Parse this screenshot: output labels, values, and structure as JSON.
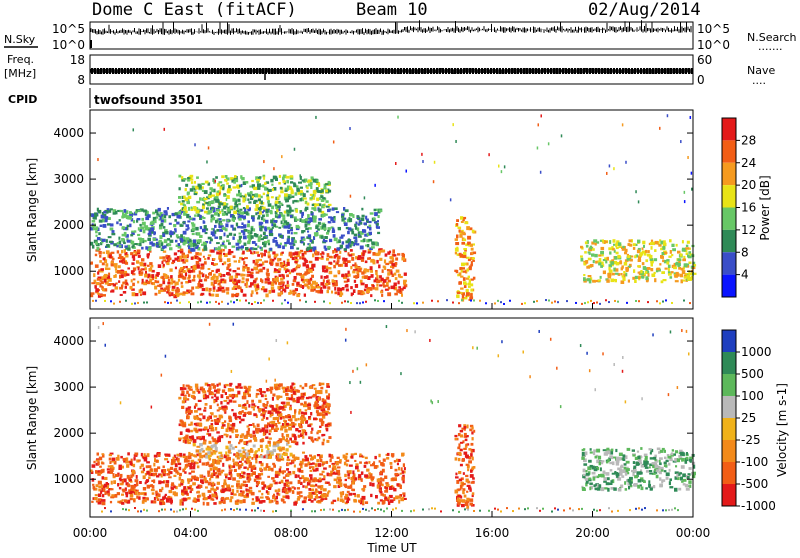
{
  "header": {
    "station": "Dome C East (fitACF)",
    "beam": "Beam 10",
    "date": "02/Aug/2014"
  },
  "top_panels": {
    "nsky_label": "N.Sky",
    "nsearch_label": "N.Search",
    "nsearch_dots": ".......",
    "noise_ticks_left": [
      "10^5",
      "10^0"
    ],
    "noise_ticks_right": [
      "10^5",
      "10^0"
    ],
    "freq_label_1": "Freq.",
    "freq_label_2": "[MHz]",
    "freq_ticks": [
      "18",
      "8"
    ],
    "nave_label": "Nave",
    "nave_dots": "....",
    "nave_ticks": [
      "60",
      "0"
    ],
    "cpid_label": "CPID",
    "cpid_value": "twofsound 3501"
  },
  "axes": {
    "ylabel": "Slant Range [km]",
    "yticks": [
      "1000",
      "2000",
      "3000",
      "4000"
    ],
    "xlabel": "Time UT",
    "xticks": [
      "00:00",
      "04:00",
      "08:00",
      "12:00",
      "16:00",
      "20:00",
      "00:00"
    ]
  },
  "power_scale": {
    "label": "Power [dB]",
    "ticks": [
      "4",
      "8",
      "12",
      "16",
      "20",
      "24",
      "28"
    ],
    "colors": [
      "#0a14ff",
      "#3a4ec8",
      "#2f8a57",
      "#67c766",
      "#e8e317",
      "#f59a1f",
      "#f25e16",
      "#e41a1a"
    ]
  },
  "velocity_scale": {
    "label": "Velocity [m s-1]",
    "ticks": [
      "1000",
      "500",
      "100",
      "25",
      "-25",
      "-100",
      "-500",
      "-1000"
    ],
    "colors": [
      "#1f3fbf",
      "#2f8a57",
      "#5db85b",
      "#b9b9b9",
      "#f0b21a",
      "#f38a1a",
      "#f25e16",
      "#e41a1a"
    ]
  },
  "chart_data": {
    "type": "heatmap",
    "x_range_hours": [
      0,
      24
    ],
    "y_range_km": [
      180,
      4500
    ],
    "panels": [
      {
        "quantity": "Power",
        "unit": "dB",
        "scatter_regions": [
          {
            "t_start": "00:00",
            "t_end": "12:30",
            "range_km": [
              500,
              1500
            ],
            "typical_dB": 24
          },
          {
            "t_start": "00:00",
            "t_end": "11:30",
            "range_km": [
              1500,
              2400
            ],
            "typical_dB": 10
          },
          {
            "t_start": "03:30",
            "t_end": "09:30",
            "range_km": [
              2300,
              3100
            ],
            "typical_dB": 12
          },
          {
            "t_start": "14:30",
            "t_end": "15:15",
            "range_km": [
              400,
              2200
            ],
            "typical_dB": 20
          },
          {
            "t_start": "19:30",
            "t_end": "24:00",
            "range_km": [
              800,
              1700
            ],
            "typical_dB": 18
          }
        ]
      },
      {
        "quantity": "Velocity",
        "unit": "m s-1",
        "scatter_regions": [
          {
            "t_start": "00:00",
            "t_end": "12:30",
            "range_km": [
              500,
              1600
            ],
            "typical_ms": -200
          },
          {
            "t_start": "04:00",
            "t_end": "08:00",
            "range_km": [
              1500,
              1800
            ],
            "typical_ms": 0
          },
          {
            "t_start": "03:30",
            "t_end": "09:30",
            "range_km": [
              1800,
              3100
            ],
            "typical_ms": -150
          },
          {
            "t_start": "14:30",
            "t_end": "15:15",
            "range_km": [
              400,
              2200
            ],
            "typical_ms": -300
          },
          {
            "t_start": "19:30",
            "t_end": "24:00",
            "range_km": [
              800,
              1700
            ],
            "typical_ms": 150
          }
        ]
      }
    ]
  }
}
